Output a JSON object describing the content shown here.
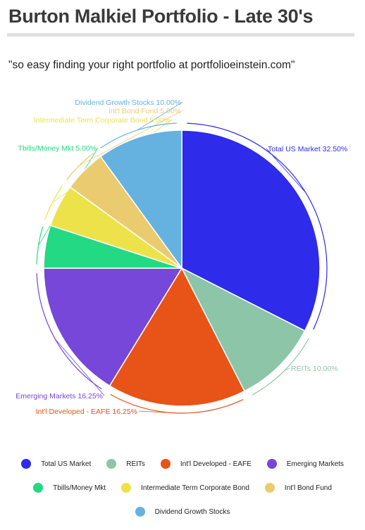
{
  "page": {
    "title": "Burton Malkiel Portfolio - Late 30's",
    "tagline": "\"so easy finding your right portfolio at portfolioeinstein.com\""
  },
  "chart_data": {
    "type": "pie",
    "title": "",
    "start_angle_deg": 0,
    "direction": "clockwise",
    "slices": [
      {
        "label": "Total US Market",
        "value": 32.5,
        "display": "Total US Market 32.50%",
        "color": "#2e2bea",
        "side": "right"
      },
      {
        "label": "REITs",
        "value": 10.0,
        "display": "REITs 10.00%",
        "color": "#8cc5a8",
        "side": "right"
      },
      {
        "label": "Int'l Developed - EAFE",
        "value": 16.25,
        "display": "Int'l Developed - EAFE 16.25%",
        "color": "#e85317",
        "side": "left"
      },
      {
        "label": "Emerging Markets",
        "value": 16.25,
        "display": "Emerging Markets 16.25%",
        "color": "#7647d8",
        "side": "left"
      },
      {
        "label": "Tbills/Money Mkt",
        "value": 5.0,
        "display": "Tbills/Money Mkt 5.00%",
        "color": "#24d983",
        "side": "left"
      },
      {
        "label": "Intermediate Term Corporate Bond",
        "value": 5.0,
        "display": "Intermediate Term Corporate Bond 5.00%",
        "color": "#ede24a",
        "side": "left"
      },
      {
        "label": "Int'l Bond Fund",
        "value": 5.0,
        "display": "Int'l Bond Fund 5.00%",
        "color": "#ebcb70",
        "side": "left"
      },
      {
        "label": "Dividend Growth Stocks",
        "value": 10.0,
        "display": "Dividend Growth Stocks 10.00%",
        "color": "#65b2e1",
        "side": "left"
      }
    ],
    "legend": {
      "position": "bottom",
      "rows": [
        [
          "Total US Market",
          "REITs",
          "Int'l Developed - EAFE",
          "Emerging Markets"
        ],
        [
          "Tbills/Money Mkt",
          "Intermediate Term Corporate Bond",
          "Int'l Bond Fund"
        ],
        [
          "Dividend Growth Stocks"
        ]
      ]
    }
  }
}
